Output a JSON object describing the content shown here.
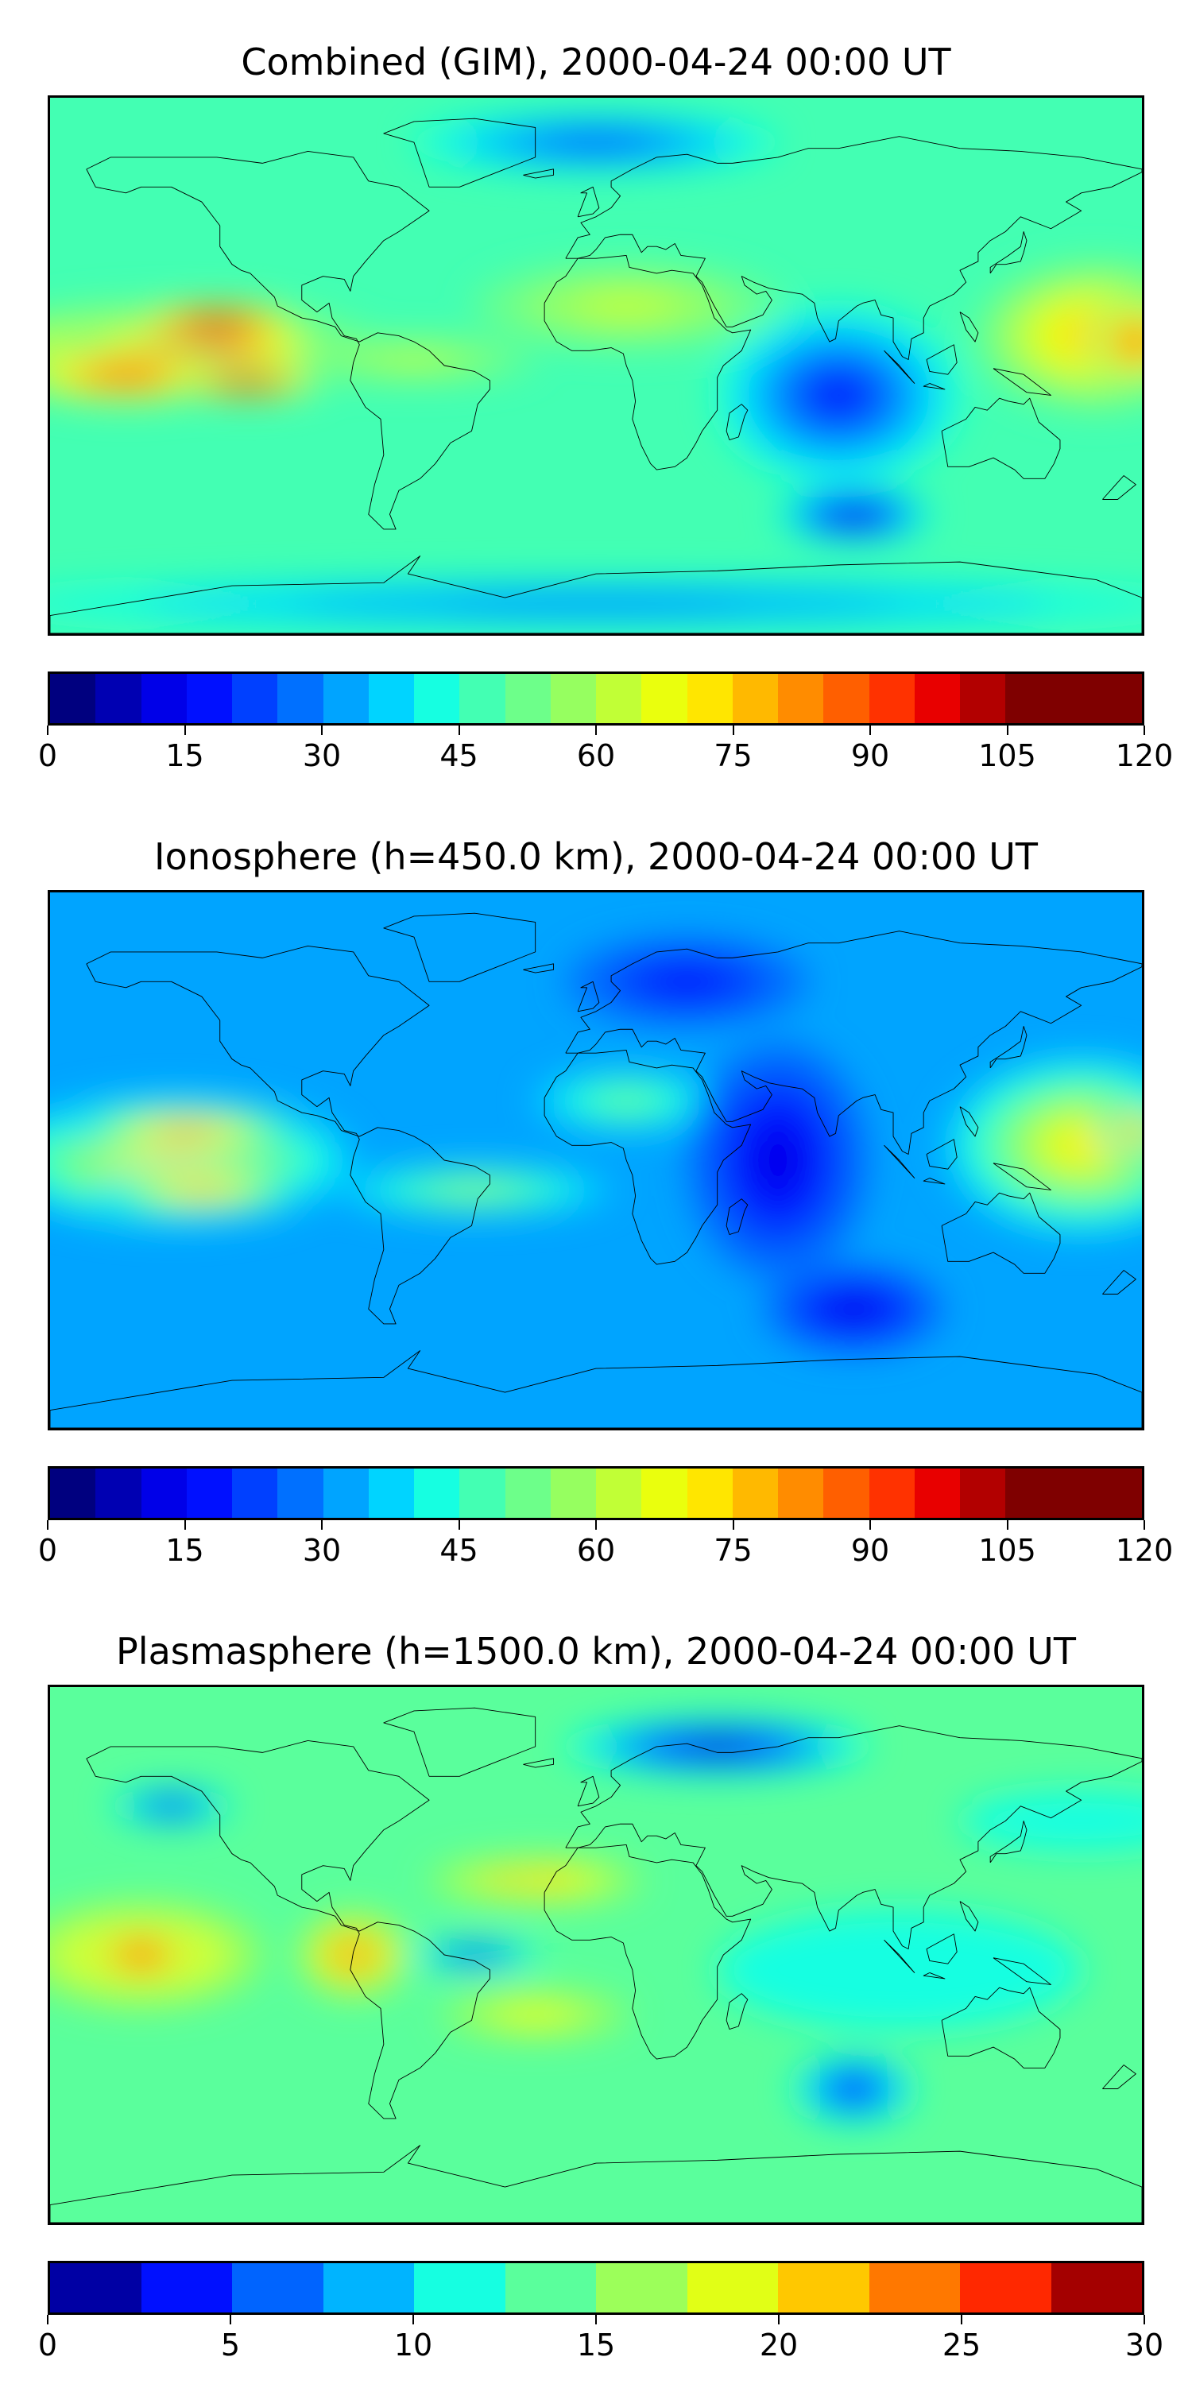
{
  "panels": [
    {
      "title": "Combined (GIM), 2000-04-24 00:00 UT",
      "colorbar": {
        "vmin": 0,
        "vmax": 120,
        "n_levels": 24,
        "ticks": [
          "0",
          "15",
          "30",
          "45",
          "60",
          "75",
          "90",
          "105",
          "120"
        ]
      },
      "field": {
        "background_level": 9,
        "blobs": [
          {
            "lon": -140,
            "lat": 5,
            "dlon": 70,
            "dlat": 16,
            "level": 15
          },
          {
            "lon": -130,
            "lat": 7,
            "dlon": 45,
            "dlat": 9,
            "level": 19
          },
          {
            "lon": -155,
            "lat": -3,
            "dlon": 40,
            "dlat": 10,
            "level": 18
          },
          {
            "lon": -125,
            "lat": 15,
            "dlon": 28,
            "dlat": 6,
            "level": 22
          },
          {
            "lon": -115,
            "lat": -6,
            "dlon": 24,
            "dlat": 5,
            "level": 23
          },
          {
            "lon": -60,
            "lat": 2,
            "dlon": 40,
            "dlat": 7,
            "level": 12
          },
          {
            "lon": 10,
            "lat": 20,
            "dlon": 50,
            "dlat": 14,
            "level": 12
          },
          {
            "lon": 165,
            "lat": 10,
            "dlon": 40,
            "dlat": 25,
            "level": 15
          },
          {
            "lon": 178,
            "lat": 8,
            "dlon": 15,
            "dlat": 15,
            "level": 18
          },
          {
            "lon": 80,
            "lat": -10,
            "dlon": 40,
            "dlat": 30,
            "level": 3
          },
          {
            "lon": 85,
            "lat": -50,
            "dlon": 25,
            "dlat": 10,
            "level": 1
          },
          {
            "lon": 0,
            "lat": 75,
            "dlon": 60,
            "dlat": 10,
            "level": 4
          },
          {
            "lon": 0,
            "lat": -80,
            "dlon": 200,
            "dlat": 8,
            "level": 5
          }
        ]
      }
    },
    {
      "title": "Ionosphere  (h=450.0 km), 2000-04-24 00:00 UT",
      "colorbar": {
        "vmin": 0,
        "vmax": 120,
        "n_levels": 24,
        "ticks": [
          "0",
          "15",
          "30",
          "45",
          "60",
          "75",
          "90",
          "105",
          "120"
        ]
      },
      "field": {
        "background_level": 6,
        "blobs": [
          {
            "lon": -140,
            "lat": 0,
            "dlon": 60,
            "dlat": 22,
            "level": 14
          },
          {
            "lon": -135,
            "lat": 10,
            "dlon": 40,
            "dlat": 8,
            "level": 17
          },
          {
            "lon": -130,
            "lat": -10,
            "dlon": 35,
            "dlat": 8,
            "level": 16
          },
          {
            "lon": -40,
            "lat": -10,
            "dlon": 45,
            "dlat": 8,
            "level": 11
          },
          {
            "lon": 10,
            "lat": 20,
            "dlon": 30,
            "dlat": 10,
            "level": 10
          },
          {
            "lon": 160,
            "lat": 5,
            "dlon": 45,
            "dlat": 30,
            "level": 14
          },
          {
            "lon": 178,
            "lat": 10,
            "dlon": 12,
            "dlat": 10,
            "level": 17
          },
          {
            "lon": 60,
            "lat": 0,
            "dlon": 30,
            "dlat": 40,
            "level": 2
          },
          {
            "lon": 85,
            "lat": -50,
            "dlon": 30,
            "dlat": 15,
            "level": 2
          },
          {
            "lon": 30,
            "lat": 60,
            "dlon": 40,
            "dlat": 15,
            "level": 3
          }
        ]
      }
    },
    {
      "title": "Plasmasphere (h=1500.0 km), 2000-04-24 00:00 UT",
      "colorbar": {
        "vmin": 0,
        "vmax": 30,
        "n_levels": 12,
        "ticks": [
          "0",
          "5",
          "10",
          "15",
          "20",
          "25",
          "30"
        ]
      },
      "field": {
        "background_level": 5,
        "blobs": [
          {
            "lon": -150,
            "lat": 0,
            "dlon": 40,
            "dlat": 18,
            "level": 8
          },
          {
            "lon": -150,
            "lat": 0,
            "dlon": 18,
            "dlat": 9,
            "level": 10
          },
          {
            "lon": -80,
            "lat": 0,
            "dlon": 18,
            "dlat": 14,
            "level": 10
          },
          {
            "lon": -80,
            "lat": 0,
            "dlon": 8,
            "dlat": 6,
            "level": 11
          },
          {
            "lon": -20,
            "lat": 25,
            "dlon": 35,
            "dlat": 8,
            "level": 8
          },
          {
            "lon": -30,
            "lat": 25,
            "dlon": 10,
            "dlat": 4,
            "level": 9
          },
          {
            "lon": -40,
            "lat": 0,
            "dlon": 22,
            "dlat": 5,
            "level": 1
          },
          {
            "lon": -20,
            "lat": -20,
            "dlon": 30,
            "dlat": 8,
            "level": 7
          },
          {
            "lon": 85,
            "lat": -45,
            "dlon": 20,
            "dlat": 12,
            "level": 1
          },
          {
            "lon": 40,
            "lat": 70,
            "dlon": 50,
            "dlat": 10,
            "level": 0
          },
          {
            "lon": -140,
            "lat": 50,
            "dlon": 20,
            "dlat": 6,
            "level": 1
          },
          {
            "lon": 100,
            "lat": -5,
            "dlon": 60,
            "dlat": 20,
            "level": 4
          },
          {
            "lon": 160,
            "lat": 45,
            "dlon": 40,
            "dlat": 10,
            "level": 4
          }
        ]
      }
    }
  ],
  "colors": {
    "coastline": "#000000",
    "jet_24": [
      "#00007f",
      "#0000b2",
      "#0000e8",
      "#0010ff",
      "#0040ff",
      "#0070ff",
      "#00a4ff",
      "#00d4ff",
      "#16ffe1",
      "#43ffb3",
      "#6dff8a",
      "#96ff60",
      "#c1ff36",
      "#eaff0d",
      "#ffe600",
      "#ffb900",
      "#ff8c00",
      "#ff5f00",
      "#ff3200",
      "#e80000",
      "#b20000",
      "#7f0000",
      "#7f0000",
      "#7f0000"
    ],
    "jet_12": [
      "#0000a4",
      "#0010ff",
      "#0064ff",
      "#00b4ff",
      "#16ffe1",
      "#5aff9c",
      "#9cff5a",
      "#e1ff16",
      "#ffc800",
      "#ff7800",
      "#ff2800",
      "#a40000"
    ]
  }
}
